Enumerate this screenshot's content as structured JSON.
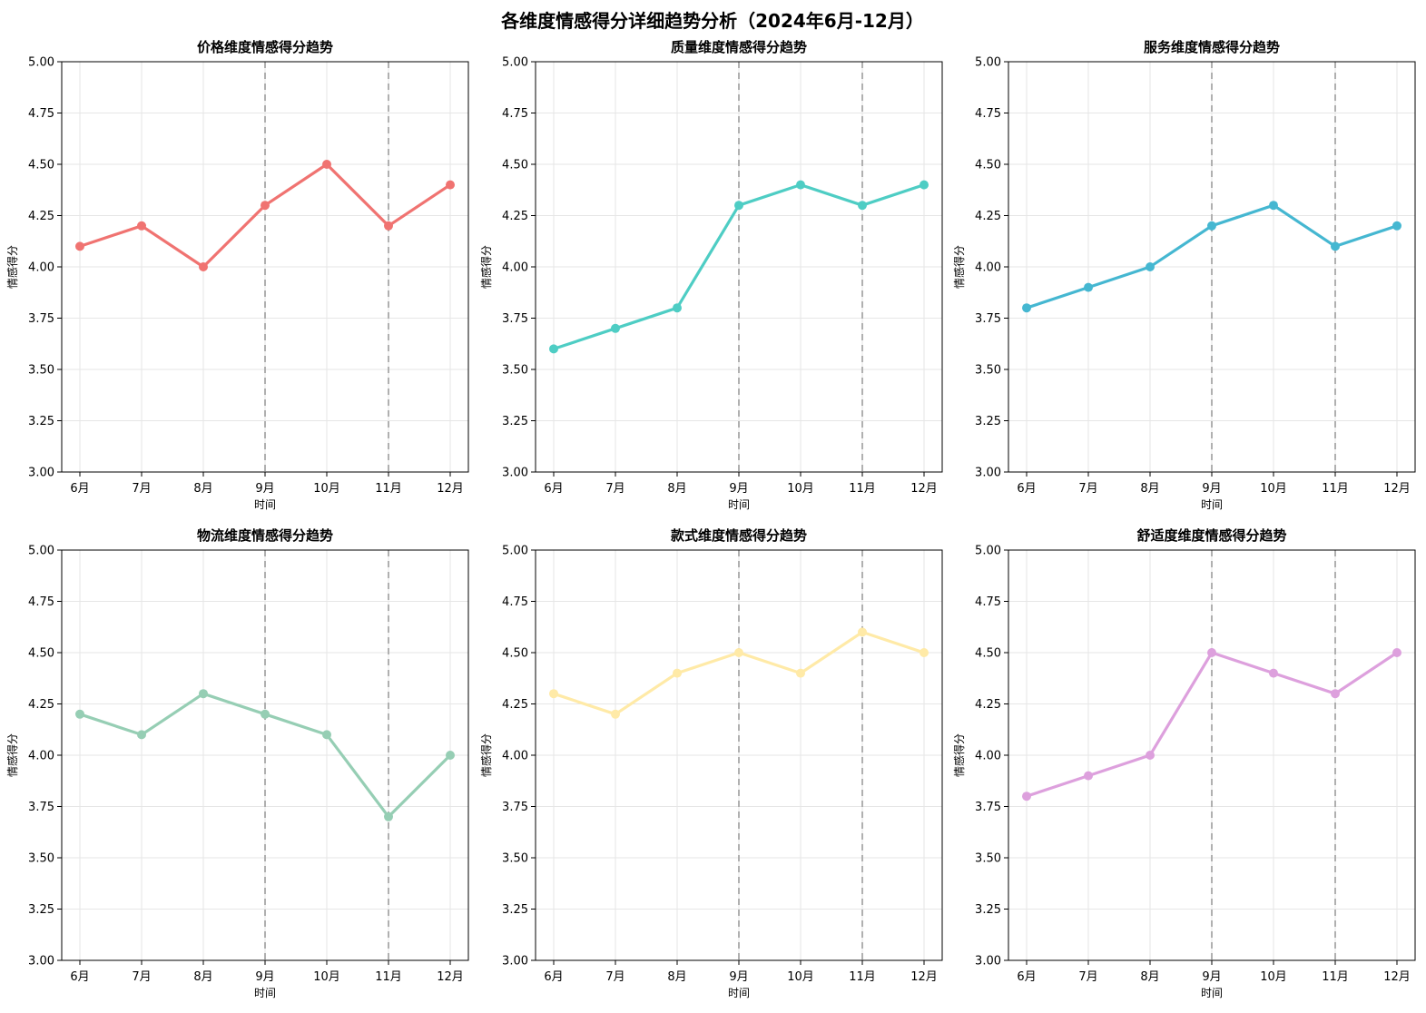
{
  "figure_title": "各维度情感得分详细趋势分析（2024年6月-12月）",
  "chart_data": [
    {
      "type": "line",
      "title": "价格维度情感得分趋势",
      "xlabel": "时间",
      "ylabel": "情感得分",
      "categories": [
        "6月",
        "7月",
        "8月",
        "9月",
        "10月",
        "11月",
        "12月"
      ],
      "values": [
        4.1,
        4.2,
        4.0,
        4.3,
        4.5,
        4.2,
        4.4
      ],
      "ylim": [
        3.0,
        5.0
      ],
      "yticks": [
        "3.00",
        "3.25",
        "3.50",
        "3.75",
        "4.00",
        "4.25",
        "4.50",
        "4.75",
        "5.00"
      ],
      "vlines": [
        "9月",
        "11月"
      ],
      "grid": true,
      "color": "#f07371"
    },
    {
      "type": "line",
      "title": "质量维度情感得分趋势",
      "xlabel": "时间",
      "ylabel": "情感得分",
      "categories": [
        "6月",
        "7月",
        "8月",
        "9月",
        "10月",
        "11月",
        "12月"
      ],
      "values": [
        3.6,
        3.7,
        3.8,
        4.3,
        4.4,
        4.3,
        4.4
      ],
      "ylim": [
        3.0,
        5.0
      ],
      "yticks": [
        "3.00",
        "3.25",
        "3.50",
        "3.75",
        "4.00",
        "4.25",
        "4.50",
        "4.75",
        "5.00"
      ],
      "vlines": [
        "9月",
        "11月"
      ],
      "grid": true,
      "color": "#4ecdc4"
    },
    {
      "type": "line",
      "title": "服务维度情感得分趋势",
      "xlabel": "时间",
      "ylabel": "情感得分",
      "categories": [
        "6月",
        "7月",
        "8月",
        "9月",
        "10月",
        "11月",
        "12月"
      ],
      "values": [
        3.8,
        3.9,
        4.0,
        4.2,
        4.3,
        4.1,
        4.2
      ],
      "ylim": [
        3.0,
        5.0
      ],
      "yticks": [
        "3.00",
        "3.25",
        "3.50",
        "3.75",
        "4.00",
        "4.25",
        "4.50",
        "4.75",
        "5.00"
      ],
      "vlines": [
        "9月",
        "11月"
      ],
      "grid": true,
      "color": "#45b7d1"
    },
    {
      "type": "line",
      "title": "物流维度情感得分趋势",
      "xlabel": "时间",
      "ylabel": "情感得分",
      "categories": [
        "6月",
        "7月",
        "8月",
        "9月",
        "10月",
        "11月",
        "12月"
      ],
      "values": [
        4.2,
        4.1,
        4.3,
        4.2,
        4.1,
        3.7,
        4.0
      ],
      "ylim": [
        3.0,
        5.0
      ],
      "yticks": [
        "3.00",
        "3.25",
        "3.50",
        "3.75",
        "4.00",
        "4.25",
        "4.50",
        "4.75",
        "5.00"
      ],
      "vlines": [
        "9月",
        "11月"
      ],
      "grid": true,
      "color": "#96ceb4"
    },
    {
      "type": "line",
      "title": "款式维度情感得分趋势",
      "xlabel": "时间",
      "ylabel": "情感得分",
      "categories": [
        "6月",
        "7月",
        "8月",
        "9月",
        "10月",
        "11月",
        "12月"
      ],
      "values": [
        4.3,
        4.2,
        4.4,
        4.5,
        4.4,
        4.6,
        4.5
      ],
      "ylim": [
        3.0,
        5.0
      ],
      "yticks": [
        "3.00",
        "3.25",
        "3.50",
        "3.75",
        "4.00",
        "4.25",
        "4.50",
        "4.75",
        "5.00"
      ],
      "vlines": [
        "9月",
        "11月"
      ],
      "grid": true,
      "color": "#ffeaa7"
    },
    {
      "type": "line",
      "title": "舒适度维度情感得分趋势",
      "xlabel": "时间",
      "ylabel": "情感得分",
      "categories": [
        "6月",
        "7月",
        "8月",
        "9月",
        "10月",
        "11月",
        "12月"
      ],
      "values": [
        3.8,
        3.9,
        4.0,
        4.5,
        4.4,
        4.3,
        4.5
      ],
      "ylim": [
        3.0,
        5.0
      ],
      "yticks": [
        "3.00",
        "3.25",
        "3.50",
        "3.75",
        "4.00",
        "4.25",
        "4.50",
        "4.75",
        "5.00"
      ],
      "vlines": [
        "9月",
        "11月"
      ],
      "grid": true,
      "color": "#dda0dd"
    }
  ]
}
